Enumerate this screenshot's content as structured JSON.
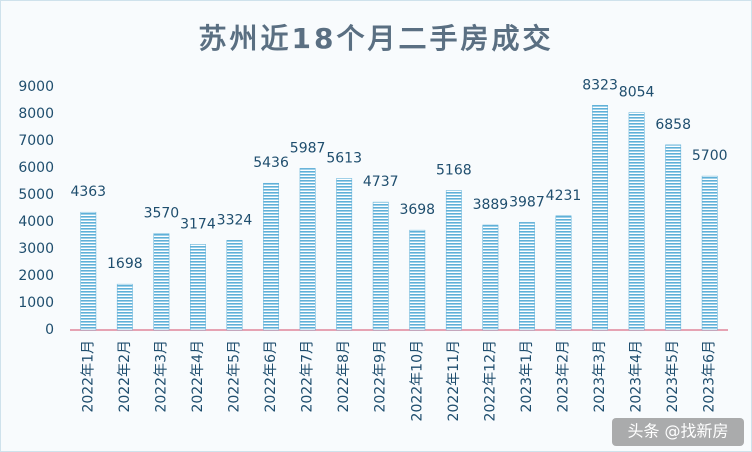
{
  "chart_data": {
    "type": "bar",
    "title": "苏州近18个月二手房成交",
    "categories": [
      "2022年1月",
      "2022年2月",
      "2022年3月",
      "2022年4月",
      "2022年5月",
      "2022年6月",
      "2022年7月",
      "2022年8月",
      "2022年9月",
      "2022年10月",
      "2022年11月",
      "2022年12月",
      "2023年1月",
      "2023年2月",
      "2023年3月",
      "2023年4月",
      "2023年5月",
      "2023年6月"
    ],
    "values": [
      4363,
      1698,
      3570,
      3174,
      3324,
      5436,
      5987,
      5613,
      4737,
      3698,
      5168,
      3889,
      3987,
      4231,
      8323,
      8054,
      6858,
      5700
    ],
    "color": "#5fb0d8",
    "ylim": [
      0,
      9000
    ],
    "yticks": [
      0,
      1000,
      2000,
      3000,
      4000,
      5000,
      6000,
      7000,
      8000,
      9000
    ],
    "grid": false,
    "watermark": "头条 @找新房"
  }
}
